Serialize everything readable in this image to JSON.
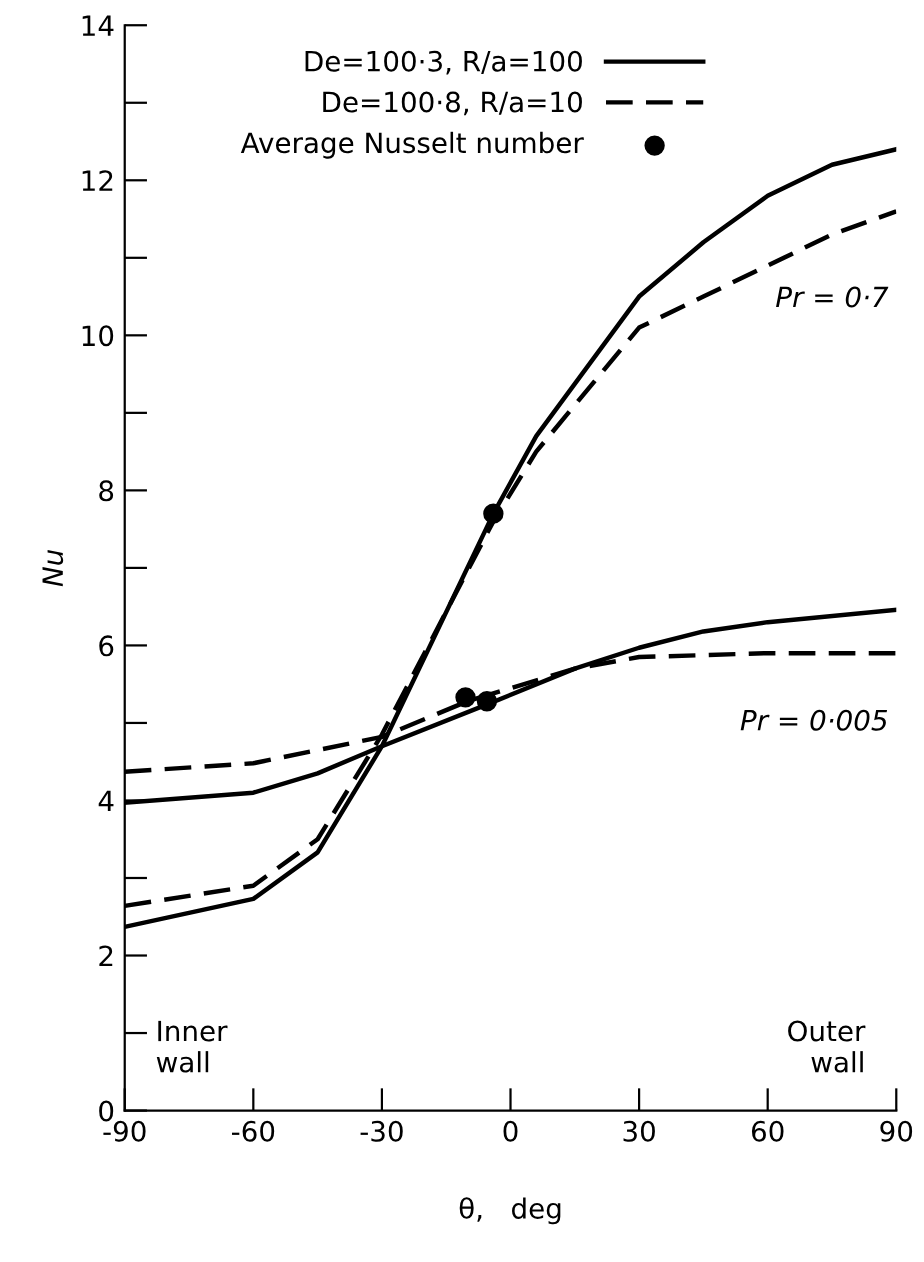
{
  "chart_data": {
    "type": "line",
    "xlabel": "θ,   deg",
    "ylabel": "Nu",
    "xlim": [
      -90,
      90
    ],
    "xticks": [
      -90,
      -60,
      -30,
      0,
      30,
      60,
      90
    ],
    "ylim": [
      0,
      14
    ],
    "yticks": [
      0,
      {
        "value": 1,
        "label": null
      },
      2,
      {
        "value": 3,
        "label": null
      },
      4,
      {
        "value": 5,
        "label": null
      },
      6,
      {
        "value": 7,
        "label": null
      },
      8,
      {
        "value": 9,
        "label": null
      },
      10,
      {
        "value": 11,
        "label": null
      },
      12,
      {
        "value": 13,
        "label": null
      },
      14
    ],
    "grid": false,
    "legend": "top",
    "marker": "none",
    "series": [
      {
        "name": "De=100·3, R/a=100",
        "color": "#000000",
        "line_style": "solid",
        "x": [
          -90,
          -60,
          -45,
          -30,
          -4,
          6,
          30,
          45,
          60,
          75,
          90
        ],
        "values": [
          2.37,
          2.73,
          3.33,
          4.7,
          7.7,
          8.7,
          10.5,
          11.2,
          11.8,
          12.2,
          12.4
        ]
      },
      {
        "name": "De=100·8, R/a=10",
        "color": "#000000",
        "line_style": "dashed",
        "x": [
          -90,
          -60,
          -45,
          -30,
          -4,
          6,
          30,
          45,
          60,
          75,
          90
        ],
        "values": [
          2.64,
          2.9,
          3.5,
          4.85,
          7.6,
          8.5,
          10.1,
          10.5,
          10.9,
          11.3,
          11.6
        ]
      },
      {
        "color": "#000000",
        "line_style": "solid",
        "x": [
          -90,
          -60,
          -45,
          -30,
          -5,
          15,
          30,
          45,
          60,
          90
        ],
        "values": [
          3.97,
          4.1,
          4.35,
          4.7,
          5.25,
          5.7,
          5.97,
          6.18,
          6.3,
          6.46
        ]
      },
      {
        "color": "#000000",
        "line_style": "dashed",
        "x": [
          -90,
          -60,
          -45,
          -30,
          -10,
          15,
          30,
          60,
          90
        ],
        "values": [
          4.37,
          4.48,
          4.65,
          4.82,
          5.28,
          5.7,
          5.85,
          5.9,
          5.9
        ]
      },
      {
        "name": "Average Nusselt number",
        "type": "scatter",
        "marker": "circle",
        "color": "#000000",
        "x": [
          -4,
          -10.5,
          -5.5
        ],
        "values": [
          7.7,
          5.33,
          5.28
        ]
      }
    ],
    "annotations": [
      "Pr = 0·7",
      "Pr = 0·005",
      "Inner\nwall",
      "Outer\nwall"
    ]
  }
}
